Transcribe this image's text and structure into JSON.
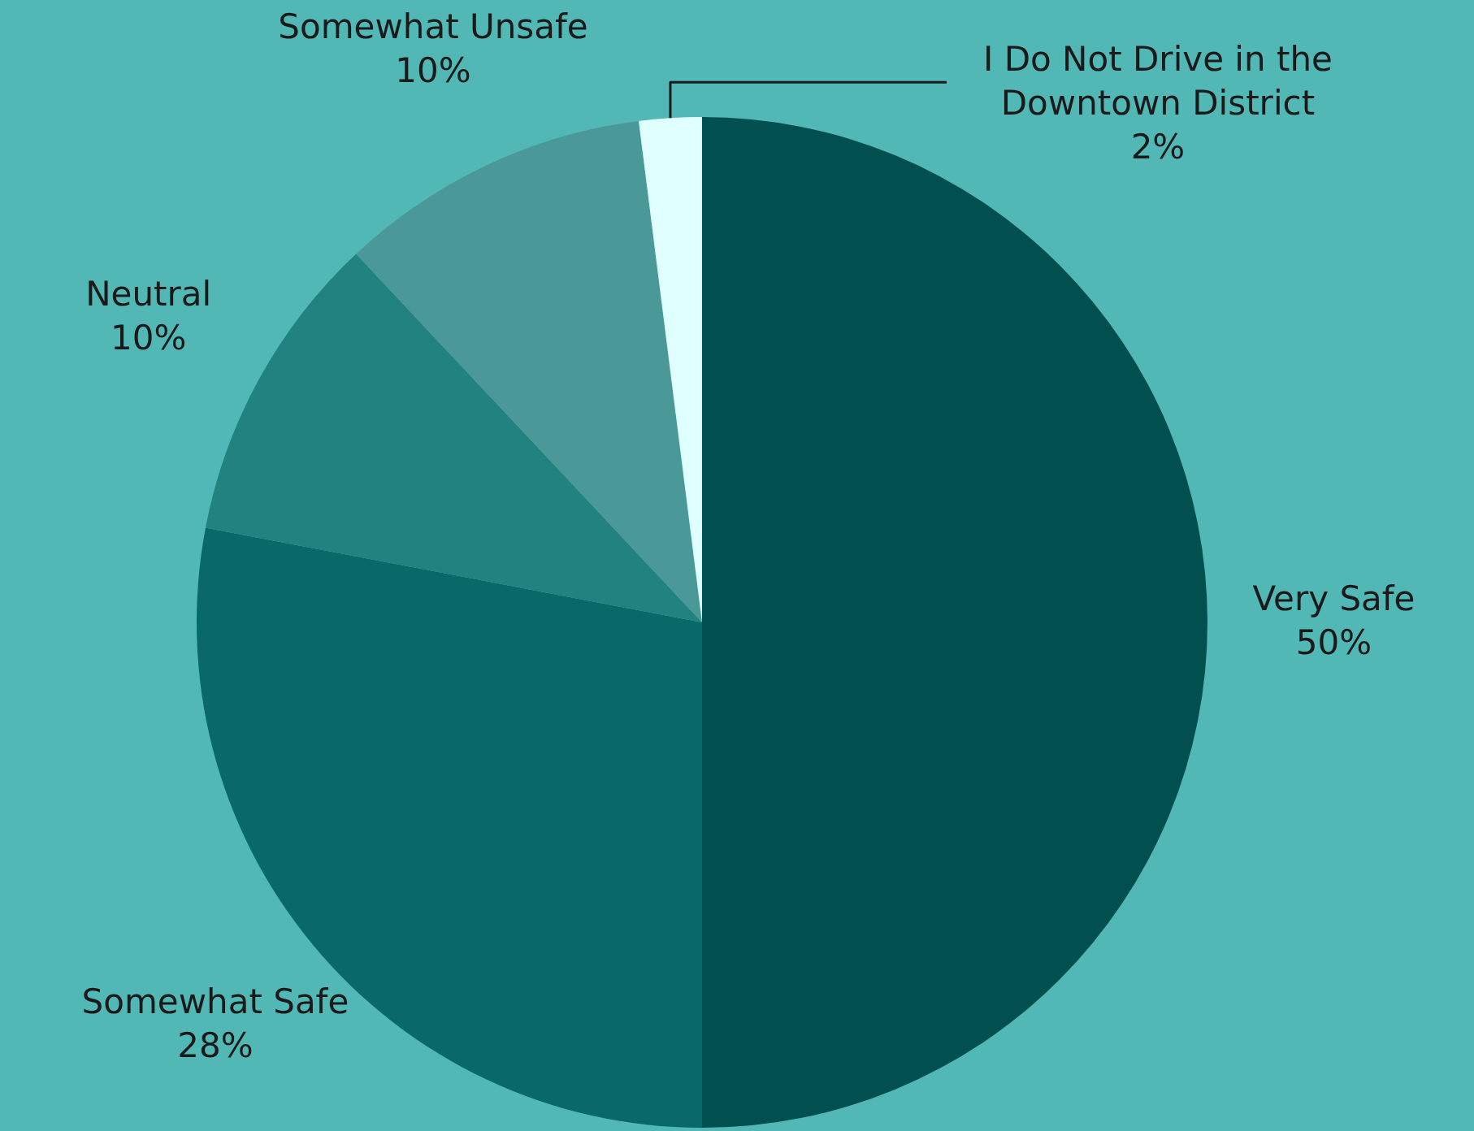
{
  "chart_data": {
    "type": "pie",
    "categories": [
      "Very Safe",
      "Somewhat Safe",
      "Neutral",
      "Somewhat Unsafe",
      "I Do Not Drive in the Downtown District"
    ],
    "values": [
      50,
      28,
      10,
      10,
      2
    ],
    "value_labels": [
      "50%",
      "28%",
      "10%",
      "10%",
      "2%"
    ],
    "colors": [
      "#024f50",
      "#096969",
      "#21827f",
      "#4b9898",
      "#e0ffff"
    ]
  }
}
